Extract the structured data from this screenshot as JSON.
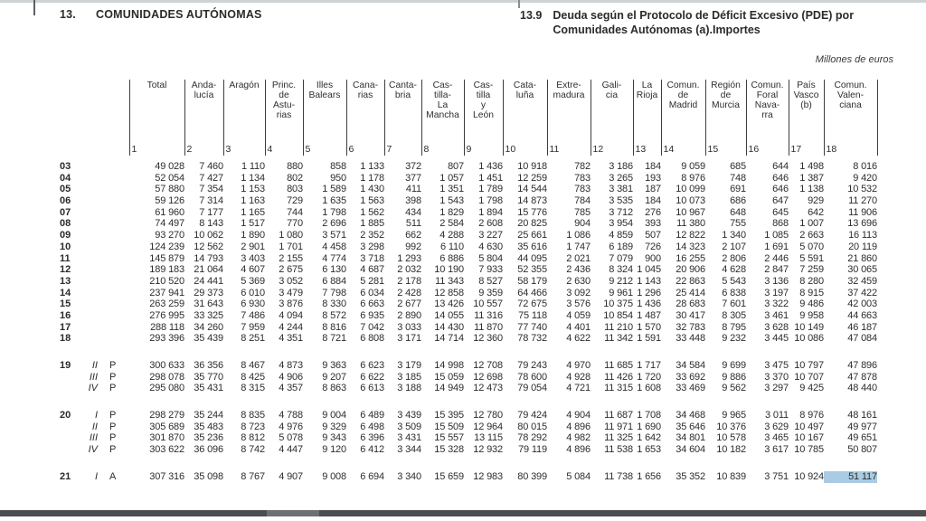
{
  "header": {
    "section_number": "13.",
    "section_title": "COMUNIDADES AUTÓNOMAS",
    "table_number": "13.9",
    "table_title_line1": "Deuda según el Protocolo de Déficit Excesivo (PDE) por",
    "table_title_line2": "Comunidades Autónomas (a).Importes",
    "units_note": "Millones de euros"
  },
  "table": {
    "columns": [
      {
        "name": "Total",
        "lines": [
          "Total"
        ],
        "num": "1"
      },
      {
        "name": "Andalucía",
        "lines": [
          "Anda-",
          "lucía"
        ],
        "num": "2"
      },
      {
        "name": "Aragón",
        "lines": [
          "Aragón"
        ],
        "num": "3"
      },
      {
        "name": "Principado de Asturias",
        "lines": [
          "Princ.",
          "de",
          "Astu-",
          "rias"
        ],
        "num": "4"
      },
      {
        "name": "Illes Balears",
        "lines": [
          "Illes",
          "Balears"
        ],
        "num": "5"
      },
      {
        "name": "Canarias",
        "lines": [
          "Cana-",
          "rias"
        ],
        "num": "6"
      },
      {
        "name": "Cantabria",
        "lines": [
          "Canta-",
          "bria"
        ],
        "num": "7"
      },
      {
        "name": "Castilla-La Mancha",
        "lines": [
          "Cas-",
          "tilla-",
          "La",
          "Mancha"
        ],
        "num": "8"
      },
      {
        "name": "Castilla y León",
        "lines": [
          "Cas-",
          "tilla",
          "y",
          "León"
        ],
        "num": "9"
      },
      {
        "name": "Cataluña",
        "lines": [
          "Cata-",
          "luña"
        ],
        "num": "10"
      },
      {
        "name": "Extremadura",
        "lines": [
          "Extre-",
          "madura"
        ],
        "num": "11"
      },
      {
        "name": "Galicia",
        "lines": [
          "Gali-",
          "cia"
        ],
        "num": "12"
      },
      {
        "name": "La Rioja",
        "lines": [
          "La",
          "Rioja"
        ],
        "num": "13"
      },
      {
        "name": "Comunidad de Madrid",
        "lines": [
          "Comun.",
          "de",
          "Madrid"
        ],
        "num": "14"
      },
      {
        "name": "Región de Murcia",
        "lines": [
          "Región",
          "de",
          "Murcia"
        ],
        "num": "15"
      },
      {
        "name": "Comunidad Foral Navarra",
        "lines": [
          "Comun.",
          "Foral",
          "Nava-",
          "rra"
        ],
        "num": "16"
      },
      {
        "name": "País Vasco",
        "lines": [
          "País",
          "Vasco",
          "(b)"
        ],
        "num": "17"
      },
      {
        "name": "Comunidad Valenciana",
        "lines": [
          "Comun.",
          "Valen-",
          "ciana"
        ],
        "num": "18"
      }
    ],
    "rows": [
      {
        "year": "03",
        "quarter": "",
        "flag": "",
        "gap_before": false,
        "values": [
          "49 028",
          "7 460",
          "1 110",
          "880",
          "858",
          "1 133",
          "372",
          "807",
          "1 436",
          "10 918",
          "782",
          "3 186",
          "184",
          "9 059",
          "685",
          "644",
          "1 498",
          "8 016"
        ]
      },
      {
        "year": "04",
        "quarter": "",
        "flag": "",
        "gap_before": false,
        "values": [
          "52 054",
          "7 427",
          "1 134",
          "802",
          "950",
          "1 178",
          "377",
          "1 057",
          "1 451",
          "12 259",
          "783",
          "3 265",
          "193",
          "8 976",
          "748",
          "646",
          "1 387",
          "9 420"
        ]
      },
      {
        "year": "05",
        "quarter": "",
        "flag": "",
        "gap_before": false,
        "values": [
          "57 880",
          "7 354",
          "1 153",
          "803",
          "1 589",
          "1 430",
          "411",
          "1 351",
          "1 789",
          "14 544",
          "783",
          "3 381",
          "187",
          "10 099",
          "691",
          "646",
          "1 138",
          "10 532"
        ]
      },
      {
        "year": "06",
        "quarter": "",
        "flag": "",
        "gap_before": false,
        "values": [
          "59 126",
          "7 314",
          "1 163",
          "729",
          "1 635",
          "1 563",
          "398",
          "1 543",
          "1 798",
          "14 873",
          "784",
          "3 535",
          "184",
          "10 073",
          "686",
          "647",
          "929",
          "11 270"
        ]
      },
      {
        "year": "07",
        "quarter": "",
        "flag": "",
        "gap_before": false,
        "values": [
          "61 960",
          "7 177",
          "1 165",
          "744",
          "1 798",
          "1 562",
          "434",
          "1 829",
          "1 894",
          "15 776",
          "785",
          "3 712",
          "276",
          "10 967",
          "648",
          "645",
          "642",
          "11 906"
        ]
      },
      {
        "year": "08",
        "quarter": "",
        "flag": "",
        "gap_before": false,
        "values": [
          "74 497",
          "8 143",
          "1 517",
          "770",
          "2 696",
          "1 885",
          "511",
          "2 584",
          "2 608",
          "20 825",
          "904",
          "3 954",
          "393",
          "11 380",
          "755",
          "868",
          "1 007",
          "13 696"
        ]
      },
      {
        "year": "09",
        "quarter": "",
        "flag": "",
        "gap_before": false,
        "values": [
          "93 270",
          "10 062",
          "1 890",
          "1 080",
          "3 571",
          "2 352",
          "662",
          "4 288",
          "3 227",
          "25 661",
          "1 086",
          "4 859",
          "507",
          "12 822",
          "1 340",
          "1 085",
          "2 663",
          "16 113"
        ]
      },
      {
        "year": "10",
        "quarter": "",
        "flag": "",
        "gap_before": false,
        "values": [
          "124 239",
          "12 562",
          "2 901",
          "1 701",
          "4 458",
          "3 298",
          "992",
          "6 110",
          "4 630",
          "35 616",
          "1 747",
          "6 189",
          "726",
          "14 323",
          "2 107",
          "1 691",
          "5 070",
          "20 119"
        ]
      },
      {
        "year": "11",
        "quarter": "",
        "flag": "",
        "gap_before": false,
        "values": [
          "145 879",
          "14 793",
          "3 403",
          "2 155",
          "4 774",
          "3 718",
          "1 293",
          "6 886",
          "5 804",
          "44 095",
          "2 021",
          "7 079",
          "900",
          "16 255",
          "2 806",
          "2 446",
          "5 591",
          "21 860"
        ]
      },
      {
        "year": "12",
        "quarter": "",
        "flag": "",
        "gap_before": false,
        "values": [
          "189 183",
          "21 064",
          "4 607",
          "2 675",
          "6 130",
          "4 687",
          "2 032",
          "10 190",
          "7 933",
          "52 355",
          "2 436",
          "8 324",
          "1 045",
          "20 906",
          "4 628",
          "2 847",
          "7 259",
          "30 065"
        ]
      },
      {
        "year": "13",
        "quarter": "",
        "flag": "",
        "gap_before": false,
        "values": [
          "210 520",
          "24 441",
          "5 369",
          "3 052",
          "6 884",
          "5 281",
          "2 178",
          "11 343",
          "8 527",
          "58 179",
          "2 630",
          "9 212",
          "1 143",
          "22 863",
          "5 543",
          "3 136",
          "8 280",
          "32 459"
        ]
      },
      {
        "year": "14",
        "quarter": "",
        "flag": "",
        "gap_before": false,
        "values": [
          "237 941",
          "29 373",
          "6 010",
          "3 479",
          "7 798",
          "6 034",
          "2 428",
          "12 858",
          "9 359",
          "64 466",
          "3 092",
          "9 961",
          "1 296",
          "25 414",
          "6 838",
          "3 197",
          "8 915",
          "37 422"
        ]
      },
      {
        "year": "15",
        "quarter": "",
        "flag": "",
        "gap_before": false,
        "values": [
          "263 259",
          "31 643",
          "6 930",
          "3 876",
          "8 330",
          "6 663",
          "2 677",
          "13 426",
          "10 557",
          "72 675",
          "3 576",
          "10 375",
          "1 436",
          "28 683",
          "7 601",
          "3 322",
          "9 486",
          "42 003"
        ]
      },
      {
        "year": "16",
        "quarter": "",
        "flag": "",
        "gap_before": false,
        "values": [
          "276 995",
          "33 325",
          "7 486",
          "4 094",
          "8 572",
          "6 935",
          "2 890",
          "14 055",
          "11 316",
          "75 118",
          "4 059",
          "10 854",
          "1 487",
          "30 417",
          "8 305",
          "3 461",
          "9 958",
          "44 663"
        ]
      },
      {
        "year": "17",
        "quarter": "",
        "flag": "",
        "gap_before": false,
        "values": [
          "288 118",
          "34 260",
          "7 959",
          "4 244",
          "8 816",
          "7 042",
          "3 033",
          "14 430",
          "11 870",
          "77 740",
          "4 401",
          "11 210",
          "1 570",
          "32 783",
          "8 795",
          "3 628",
          "10 149",
          "46 187"
        ]
      },
      {
        "year": "18",
        "quarter": "",
        "flag": "",
        "gap_before": false,
        "values": [
          "293 396",
          "35 439",
          "8 251",
          "4 351",
          "8 721",
          "6 808",
          "3 171",
          "14 714",
          "12 360",
          "78 732",
          "4 622",
          "11 342",
          "1 591",
          "33 448",
          "9 232",
          "3 445",
          "10 086",
          "47 084"
        ]
      },
      {
        "year": "19",
        "quarter": "II",
        "flag": "P",
        "gap_before": true,
        "values": [
          "300 633",
          "36 356",
          "8 467",
          "4 873",
          "9 363",
          "6 623",
          "3 179",
          "14 998",
          "12 708",
          "79 243",
          "4 970",
          "11 685",
          "1 717",
          "34 584",
          "9 699",
          "3 475",
          "10 797",
          "47 896"
        ]
      },
      {
        "year": "",
        "quarter": "III",
        "flag": "P",
        "gap_before": false,
        "values": [
          "298 078",
          "35 770",
          "8 425",
          "4 906",
          "9 207",
          "6 622",
          "3 185",
          "15 059",
          "12 698",
          "78 600",
          "4 928",
          "11 426",
          "1 720",
          "33 692",
          "9 886",
          "3 370",
          "10 707",
          "47 878"
        ]
      },
      {
        "year": "",
        "quarter": "IV",
        "flag": "P",
        "gap_before": false,
        "values": [
          "295 080",
          "35 431",
          "8 315",
          "4 357",
          "8 863",
          "6 613",
          "3 188",
          "14 949",
          "12 473",
          "79 054",
          "4 721",
          "11 315",
          "1 608",
          "33 469",
          "9 562",
          "3 297",
          "9 425",
          "48 440"
        ]
      },
      {
        "year": "20",
        "quarter": "I",
        "flag": "P",
        "gap_before": true,
        "values": [
          "298 279",
          "35 244",
          "8 835",
          "4 788",
          "9 004",
          "6 489",
          "3 439",
          "15 395",
          "12 780",
          "79 424",
          "4 904",
          "11 687",
          "1 708",
          "34 468",
          "9 965",
          "3 011",
          "8 976",
          "48 161"
        ]
      },
      {
        "year": "",
        "quarter": "II",
        "flag": "P",
        "gap_before": false,
        "values": [
          "305 689",
          "35 483",
          "8 723",
          "4 976",
          "9 329",
          "6 498",
          "3 509",
          "15 509",
          "12 964",
          "80 015",
          "4 896",
          "11 971",
          "1 690",
          "35 646",
          "10 376",
          "3 629",
          "10 497",
          "49 977"
        ]
      },
      {
        "year": "",
        "quarter": "III",
        "flag": "P",
        "gap_before": false,
        "values": [
          "301 870",
          "35 236",
          "8 812",
          "5 078",
          "9 343",
          "6 396",
          "3 431",
          "15 557",
          "13 115",
          "78 292",
          "4 982",
          "11 325",
          "1 642",
          "34 801",
          "10 578",
          "3 465",
          "10 167",
          "49 651"
        ]
      },
      {
        "year": "",
        "quarter": "IV",
        "flag": "P",
        "gap_before": false,
        "values": [
          "303 622",
          "36 096",
          "8 742",
          "4 447",
          "9 120",
          "6 412",
          "3 344",
          "15 328",
          "12 932",
          "79 119",
          "4 896",
          "11 538",
          "1 653",
          "34 604",
          "10 182",
          "3 617",
          "10 785",
          "50 807"
        ]
      },
      {
        "year": "21",
        "quarter": "I",
        "flag": "A",
        "gap_before": true,
        "values": [
          "307 316",
          "35 098",
          "8 767",
          "4 907",
          "9 008",
          "6 694",
          "3 340",
          "15 659",
          "12 983",
          "80 399",
          "5 084",
          "11 738",
          "1 656",
          "35 352",
          "10 839",
          "3 751",
          "10 924",
          "51 117"
        ]
      }
    ],
    "highlighted_cell": {
      "row": 23,
      "col": 17
    },
    "highlight_color": "#a9cbe3"
  }
}
